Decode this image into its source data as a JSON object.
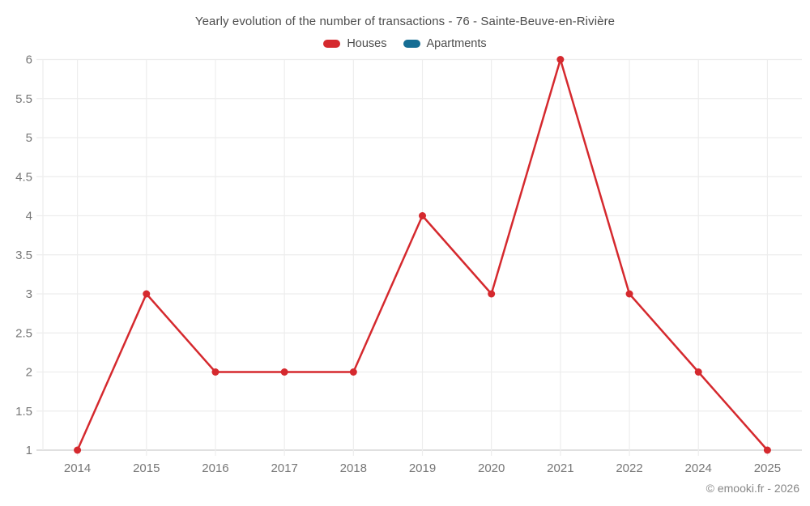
{
  "title": "Yearly evolution of the number of transactions - 76 - Sainte-Beuve-en-Rivière",
  "legend": [
    {
      "label": "Houses",
      "color": "#d5292e"
    },
    {
      "label": "Apartments",
      "color": "#156d94"
    }
  ],
  "footer": "© emooki.fr - 2026",
  "colors": {
    "houses_line": "#d5292e",
    "apartments_line": "#156d94",
    "grid": "#ededed",
    "axis_line": "#d6d6d6",
    "tick_label": "#777777",
    "title_text": "#4d4d4d",
    "footer_text": "#878787"
  },
  "chart_data": {
    "type": "line",
    "title": "Yearly evolution of the number of transactions - 76 - Sainte-Beuve-en-Rivière",
    "categories": [
      "2014",
      "2015",
      "2016",
      "2017",
      "2018",
      "2019",
      "2020",
      "2021",
      "2022",
      "2024",
      "2025"
    ],
    "series": [
      {
        "name": "Houses",
        "color": "#d5292e",
        "values": [
          1,
          3,
          2,
          2,
          2,
          4,
          3,
          6,
          3,
          2,
          1
        ]
      },
      {
        "name": "Apartments",
        "color": "#156d94",
        "values": []
      }
    ],
    "xlabel": "",
    "ylabel": "",
    "ylim": [
      1,
      6
    ],
    "ytick_step": 0.5,
    "grid": true,
    "legend_position": "top",
    "marker": "circle"
  }
}
